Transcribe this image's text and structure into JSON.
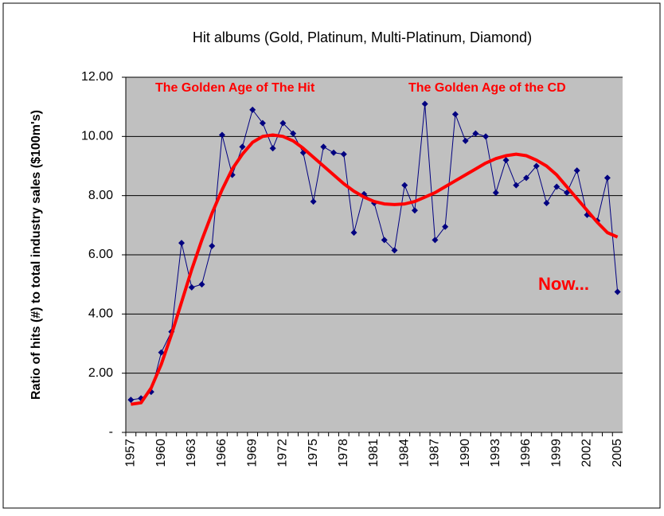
{
  "chart_data": {
    "type": "line",
    "title": "Hit albums (Gold, Platinum, Multi-Platinum, Diamond)",
    "y_label": "Ratio of hits (#) to total industry sales ($100m's)",
    "annotations": [
      "The Golden Age of The Hit",
      "The Golden Age of the CD",
      "Now..."
    ],
    "categories": [
      "1957",
      null,
      null,
      "1960",
      null,
      null,
      "1963",
      null,
      null,
      "1966",
      null,
      null,
      "1969",
      null,
      null,
      "1972",
      null,
      null,
      "1975",
      null,
      null,
      "1978",
      null,
      null,
      "1981",
      null,
      null,
      "1984",
      null,
      null,
      "1987",
      null,
      null,
      "1990",
      null,
      null,
      "1993",
      null,
      null,
      "1996",
      null,
      null,
      "1999",
      null,
      null,
      "2002",
      null,
      null,
      "2005"
    ],
    "series": [
      {
        "color": "#000080",
        "marker": "diamond",
        "values": [
          1.1,
          1.15,
          1.37,
          2.7,
          3.4,
          6.4,
          4.9,
          5.0,
          6.3,
          10.05,
          8.7,
          9.65,
          10.9,
          10.45,
          9.6,
          10.45,
          10.1,
          9.45,
          7.8,
          9.65,
          9.45,
          9.4,
          6.75,
          8.05,
          7.75,
          6.5,
          6.15,
          8.35,
          7.5,
          11.1,
          6.5,
          6.95,
          10.75,
          9.85,
          10.1,
          10.0,
          8.1,
          9.2,
          8.35,
          8.6,
          9.0,
          7.75,
          8.3,
          8.1,
          8.85,
          7.35,
          7.15,
          8.6,
          4.75
        ]
      },
      {
        "color": "#ff0000",
        "marker": "none",
        "values": [
          0.95,
          1.0,
          1.5,
          2.3,
          3.3,
          4.4,
          5.5,
          6.5,
          7.4,
          8.2,
          8.9,
          9.4,
          9.8,
          10.0,
          10.05,
          10.0,
          9.85,
          9.6,
          9.3,
          9.0,
          8.7,
          8.4,
          8.15,
          7.95,
          7.8,
          7.72,
          7.7,
          7.72,
          7.8,
          7.95,
          8.1,
          8.3,
          8.5,
          8.7,
          8.9,
          9.1,
          9.25,
          9.35,
          9.4,
          9.35,
          9.2,
          9.0,
          8.7,
          8.3,
          7.9,
          7.5,
          7.1,
          6.75,
          6.6
        ]
      }
    ],
    "ylim": [
      0,
      12
    ],
    "yticks": [
      {
        "value": 0,
        "label": "-"
      },
      {
        "value": 2,
        "label": "2.00"
      },
      {
        "value": 4,
        "label": "4.00"
      },
      {
        "value": 6,
        "label": "6.00"
      },
      {
        "value": 8,
        "label": "8.00"
      },
      {
        "value": 10,
        "label": "10.00"
      },
      {
        "value": 12,
        "label": "12.00"
      }
    ],
    "grid": true,
    "plot_background": "#c0c0c0"
  }
}
